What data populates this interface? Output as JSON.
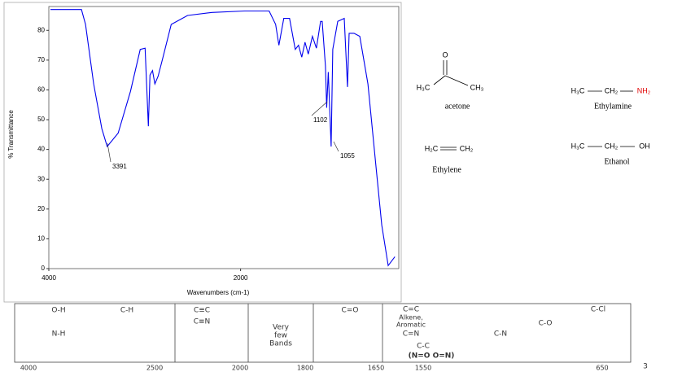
{
  "chart_data": {
    "type": "line",
    "x": [
      3983,
      3660,
      3617,
      3532,
      3447,
      3391,
      3277,
      3149,
      3047,
      2996,
      2962,
      2945,
      2919,
      2894,
      2860,
      2809,
      2723,
      2553,
      2298,
      1957,
      1702,
      1634,
      1600,
      1549,
      1489,
      1430,
      1396,
      1362,
      1328,
      1294,
      1251,
      1209,
      1166,
      1149,
      1115,
      1102,
      1085,
      1055,
      1038,
      987,
      919,
      885,
      868,
      817,
      757,
      672,
      587,
      527,
      460,
      391
    ],
    "values": [
      87,
      87,
      82,
      62,
      47,
      41,
      45.5,
      59.5,
      73.6,
      74,
      47.8,
      65,
      66.5,
      62,
      64.6,
      71,
      82,
      85,
      86,
      86.5,
      86.5,
      82,
      75,
      84,
      84,
      73.6,
      75,
      71,
      76,
      72,
      78,
      74,
      83,
      83,
      68,
      54,
      66,
      41,
      73.6,
      83,
      84,
      61,
      79,
      79,
      78,
      62,
      34,
      14.6,
      1,
      4
    ],
    "color": "#0000ee",
    "xlim": [
      4000,
      350
    ],
    "ylim": [
      0,
      88
    ],
    "xticks": [
      4000,
      2000
    ],
    "yticks": [
      0,
      10,
      20,
      30,
      40,
      50,
      60,
      70,
      80
    ],
    "xlabel": "Wavenumbers (cm-1)",
    "ylabel": "% Transmittance",
    "annotations": [
      "3391",
      "1102",
      "1055"
    ]
  },
  "structures": [
    {
      "atoms": [
        "O",
        "H₃C",
        "CH₃"
      ],
      "name": "acetone"
    },
    {
      "atoms": [
        "H₃C",
        "CH₂",
        "NH₂"
      ],
      "name": "Ethylamine"
    },
    {
      "atoms": [
        "H₂C",
        "CH₂"
      ],
      "name": "Ethylene"
    },
    {
      "atoms": [
        "H₃C",
        "CH₂",
        "OH"
      ],
      "name": "Ethanol"
    }
  ],
  "table": {
    "cells": [
      "O-H",
      "C-H",
      "N-H",
      "C≡C",
      "C≡N",
      "Very",
      "few",
      "Bands",
      "C=O",
      "C=C",
      "Alkene,",
      "Aromatic",
      "C=N",
      "C-C",
      "(N=O O=N)",
      "C-N",
      "C-O",
      "C-Cl"
    ],
    "scale": [
      "4000",
      "2500",
      "2000",
      "1800",
      "1650",
      "1550",
      "650"
    ]
  },
  "page_number": "3"
}
